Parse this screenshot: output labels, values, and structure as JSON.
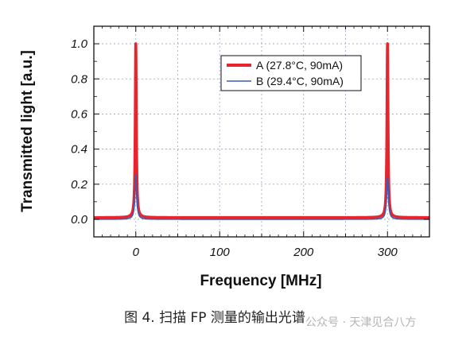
{
  "chart_data": {
    "type": "line",
    "title": "",
    "xlabel": "Frequency [MHz]",
    "ylabel": "Transmitted light [a.u.]",
    "xlim": [
      -50,
      350
    ],
    "ylim": [
      -0.1,
      1.1
    ],
    "xticks": [
      0,
      100,
      200,
      300
    ],
    "yticks": [
      0.0,
      0.2,
      0.4,
      0.6,
      0.8,
      1.0
    ],
    "xtick_labels": [
      "0",
      "100",
      "200",
      "300"
    ],
    "ytick_labels": [
      "0.0",
      "0.2",
      "0.4",
      "0.6",
      "0.8",
      "1.0"
    ],
    "grid": true,
    "legend_position": "top-right",
    "series": [
      {
        "name": "A (27.8°C, 90mA)",
        "color": "#e8242c",
        "peaks": [
          {
            "x": 0,
            "y": 1.0
          },
          {
            "x": 300,
            "y": 1.0
          }
        ],
        "baseline": 0.01,
        "fwhm_mhz": 1.5
      },
      {
        "name": "B (29.4°C, 90mA)",
        "color": "#3a5bb8",
        "peaks": [
          {
            "x": 0,
            "y": 0.25
          },
          {
            "x": 300,
            "y": 0.24
          }
        ],
        "baseline": 0.0,
        "fwhm_mhz": 2.5
      }
    ]
  },
  "caption": "图 4. 扫描 FP 测量的输出光谱",
  "watermark": "公众号 · 天津见合八方"
}
